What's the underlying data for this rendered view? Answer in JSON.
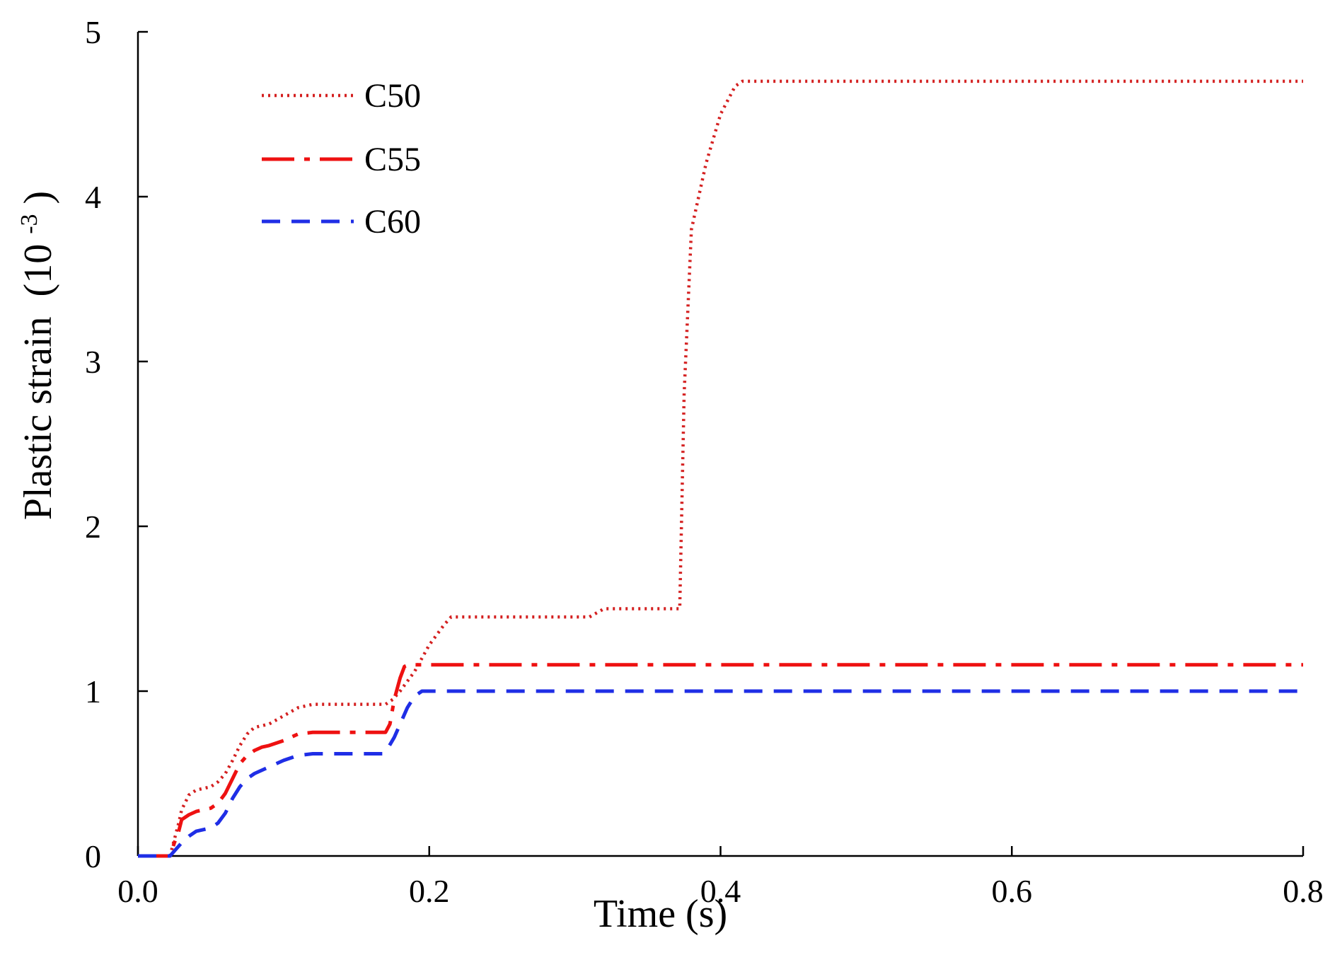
{
  "chart_data": {
    "type": "line",
    "title": "",
    "xlabel": "Time (s)",
    "ylabel": "Plastic strain",
    "ylabel_unit_base": "(10",
    "ylabel_unit_exp": "-3",
    "ylabel_unit_close": ")",
    "xlim": [
      0.0,
      0.8
    ],
    "ylim": [
      0,
      5
    ],
    "xticks": [
      0.0,
      0.2,
      0.4,
      0.6,
      0.8
    ],
    "xtick_labels": [
      "0.0",
      "0.2",
      "0.4",
      "0.6",
      "0.8"
    ],
    "yticks": [
      0,
      1,
      2,
      3,
      4,
      5
    ],
    "ytick_labels": [
      "0",
      "1",
      "2",
      "3",
      "4",
      "5"
    ],
    "grid": false,
    "legend_position": "top-left",
    "series": [
      {
        "name": "C50",
        "color": "#d42020",
        "style": "dotted",
        "points": [
          [
            0.0,
            0.0
          ],
          [
            0.022,
            0.0
          ],
          [
            0.025,
            0.1
          ],
          [
            0.028,
            0.2
          ],
          [
            0.03,
            0.28
          ],
          [
            0.035,
            0.37
          ],
          [
            0.04,
            0.4
          ],
          [
            0.05,
            0.42
          ],
          [
            0.055,
            0.45
          ],
          [
            0.06,
            0.5
          ],
          [
            0.065,
            0.58
          ],
          [
            0.07,
            0.67
          ],
          [
            0.075,
            0.74
          ],
          [
            0.08,
            0.78
          ],
          [
            0.09,
            0.8
          ],
          [
            0.1,
            0.85
          ],
          [
            0.11,
            0.9
          ],
          [
            0.12,
            0.92
          ],
          [
            0.17,
            0.92
          ],
          [
            0.175,
            0.95
          ],
          [
            0.18,
            1.0
          ],
          [
            0.19,
            1.12
          ],
          [
            0.2,
            1.28
          ],
          [
            0.21,
            1.4
          ],
          [
            0.215,
            1.45
          ],
          [
            0.31,
            1.45
          ],
          [
            0.32,
            1.5
          ],
          [
            0.37,
            1.5
          ],
          [
            0.372,
            1.5
          ],
          [
            0.375,
            2.8
          ],
          [
            0.38,
            3.8
          ],
          [
            0.39,
            4.2
          ],
          [
            0.4,
            4.5
          ],
          [
            0.41,
            4.67
          ],
          [
            0.415,
            4.7
          ],
          [
            0.8,
            4.7
          ]
        ]
      },
      {
        "name": "C55",
        "color": "#ee1111",
        "style": "dash-dot",
        "points": [
          [
            0.0,
            0.0
          ],
          [
            0.022,
            0.0
          ],
          [
            0.025,
            0.08
          ],
          [
            0.028,
            0.15
          ],
          [
            0.03,
            0.22
          ],
          [
            0.035,
            0.25
          ],
          [
            0.04,
            0.27
          ],
          [
            0.05,
            0.29
          ],
          [
            0.055,
            0.32
          ],
          [
            0.06,
            0.38
          ],
          [
            0.065,
            0.47
          ],
          [
            0.07,
            0.56
          ],
          [
            0.075,
            0.61
          ],
          [
            0.08,
            0.64
          ],
          [
            0.085,
            0.66
          ],
          [
            0.09,
            0.67
          ],
          [
            0.1,
            0.7
          ],
          [
            0.11,
            0.74
          ],
          [
            0.12,
            0.75
          ],
          [
            0.17,
            0.75
          ],
          [
            0.173,
            0.8
          ],
          [
            0.176,
            0.95
          ],
          [
            0.18,
            1.08
          ],
          [
            0.183,
            1.15
          ],
          [
            0.186,
            1.16
          ],
          [
            0.8,
            1.16
          ]
        ]
      },
      {
        "name": "C60",
        "color": "#1f2ee6",
        "style": "dashed",
        "points": [
          [
            0.0,
            0.0
          ],
          [
            0.022,
            0.0
          ],
          [
            0.025,
            0.03
          ],
          [
            0.03,
            0.08
          ],
          [
            0.035,
            0.12
          ],
          [
            0.04,
            0.15
          ],
          [
            0.05,
            0.17
          ],
          [
            0.055,
            0.2
          ],
          [
            0.06,
            0.26
          ],
          [
            0.065,
            0.35
          ],
          [
            0.07,
            0.42
          ],
          [
            0.075,
            0.47
          ],
          [
            0.08,
            0.5
          ],
          [
            0.09,
            0.54
          ],
          [
            0.1,
            0.58
          ],
          [
            0.11,
            0.61
          ],
          [
            0.12,
            0.62
          ],
          [
            0.168,
            0.62
          ],
          [
            0.172,
            0.66
          ],
          [
            0.176,
            0.72
          ],
          [
            0.18,
            0.8
          ],
          [
            0.185,
            0.9
          ],
          [
            0.19,
            0.97
          ],
          [
            0.195,
            1.0
          ],
          [
            0.8,
            1.0
          ]
        ]
      }
    ]
  }
}
